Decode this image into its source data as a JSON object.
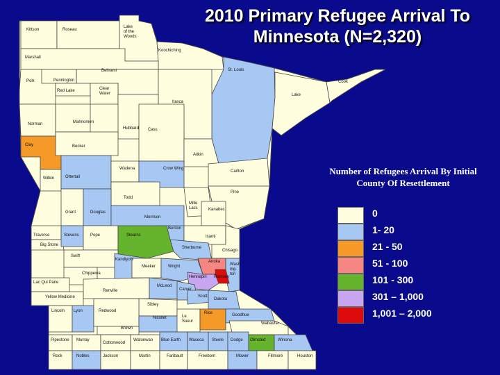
{
  "title": "2010 Primary Refugee Arrival To Minnesota (N=2,320)",
  "legend": {
    "title": "Number of Refugees Arrival By Initial County Of Resettlement",
    "items": [
      {
        "label": "0",
        "color": "#ffffe0"
      },
      {
        "label": "1- 20",
        "color": "#a8c8f4"
      },
      {
        "label": "21 - 50",
        "color": "#f59a28"
      },
      {
        "label": "51 - 100",
        "color": "#f68682"
      },
      {
        "label": "101 - 300",
        "color": "#66b32e"
      },
      {
        "label": "301 – 1,000",
        "color": "#c9a6f2"
      },
      {
        "label": "1,001 – 2,000",
        "color": "#dd0b0b"
      }
    ]
  },
  "counties": [
    {
      "name": "Kittson",
      "label": "Kittson",
      "cls": 0
    },
    {
      "name": "Roseau",
      "label": "Roseau",
      "cls": 0
    },
    {
      "name": "Lake of the Woods",
      "label": "Lake of the Woods",
      "cls": 0
    },
    {
      "name": "Koochiching",
      "label": "Koochiching",
      "cls": 0
    },
    {
      "name": "Marshall",
      "label": "Marshall",
      "cls": 0
    },
    {
      "name": "Beltrami",
      "label": "Beltrami",
      "cls": 0
    },
    {
      "name": "St. Louis",
      "label": "St. Louis",
      "cls": 1
    },
    {
      "name": "Polk",
      "label": "Polk",
      "cls": 0
    },
    {
      "name": "Pennington",
      "label": "Pennington",
      "cls": 0
    },
    {
      "name": "Red Lake",
      "label": "Red Lake",
      "cls": 0
    },
    {
      "name": "Clear Water",
      "label": "Clear Water",
      "cls": 0
    },
    {
      "name": "Lake",
      "label": "Lake",
      "cls": 0
    },
    {
      "name": "Cook",
      "label": "Cook",
      "cls": 0
    },
    {
      "name": "Itasca",
      "label": "Itasca",
      "cls": 0
    },
    {
      "name": "Norman",
      "label": "Norman",
      "cls": 0
    },
    {
      "name": "Mahnomen",
      "label": "Mahnomen",
      "cls": 0
    },
    {
      "name": "Hubbard",
      "label": "Hubbard",
      "cls": 0
    },
    {
      "name": "Cass",
      "label": "Cass",
      "cls": 0
    },
    {
      "name": "Clay",
      "label": "Clay",
      "cls": 2
    },
    {
      "name": "Becker",
      "label": "Becker",
      "cls": 0
    },
    {
      "name": "Aitkin",
      "label": "Aitkin",
      "cls": 0
    },
    {
      "name": "Carlton",
      "label": "Carlton",
      "cls": 0
    },
    {
      "name": "Wilkin",
      "label": "Wilkin",
      "cls": 0
    },
    {
      "name": "Ottertail",
      "label": "Ottertail",
      "cls": 1
    },
    {
      "name": "Wadena",
      "label": "Wadena",
      "cls": 0
    },
    {
      "name": "Crow Wing",
      "label": "Crow Wing",
      "cls": 1
    },
    {
      "name": "Pine",
      "label": "Pine",
      "cls": 0
    },
    {
      "name": "Todd",
      "label": "Todd",
      "cls": 0
    },
    {
      "name": "Mille Lacs",
      "label": "Mille Lacs",
      "cls": 0
    },
    {
      "name": "Kanabec",
      "label": "Kanabec",
      "cls": 0
    },
    {
      "name": "Grant",
      "label": "Grant",
      "cls": 0
    },
    {
      "name": "Douglas",
      "label": "Douglas",
      "cls": 1
    },
    {
      "name": "Morrison",
      "label": "Morrison",
      "cls": 1
    },
    {
      "name": "Benton",
      "label": "Benton",
      "cls": 1
    },
    {
      "name": "Traverse",
      "label": "Traverse",
      "cls": 0
    },
    {
      "name": "Big Stone",
      "label": "Big Stone",
      "cls": 0
    },
    {
      "name": "Stevens",
      "label": "Stevens",
      "cls": 1
    },
    {
      "name": "Pope",
      "label": "Pope",
      "cls": 0
    },
    {
      "name": "Stearns",
      "label": "Stearns",
      "cls": 4
    },
    {
      "name": "Isanti",
      "label": "Isanti",
      "cls": 0
    },
    {
      "name": "Sherburne",
      "label": "Sherburne",
      "cls": 1
    },
    {
      "name": "Chisago",
      "label": "Chisago",
      "cls": 0
    },
    {
      "name": "Swift",
      "label": "Swift",
      "cls": 0
    },
    {
      "name": "Kandiyohi",
      "label": "Kandiyohi",
      "cls": 1
    },
    {
      "name": "Meeker",
      "label": "Meeker",
      "cls": 0
    },
    {
      "name": "Wright",
      "label": "Wright",
      "cls": 1
    },
    {
      "name": "Anoka",
      "label": "Anoka",
      "cls": 3
    },
    {
      "name": "Washington",
      "label": "Wash-ing-ton",
      "cls": 1
    },
    {
      "name": "Hennepin",
      "label": "Hennepin",
      "cls": 5
    },
    {
      "name": "Ramsey",
      "label": "Ramsey",
      "cls": 6
    },
    {
      "name": "Chippewa",
      "label": "Chippewa",
      "cls": 0
    },
    {
      "name": "Lac Qui Parle",
      "label": "Lac Qui Parle",
      "cls": 0
    },
    {
      "name": "Renville",
      "label": "Renville",
      "cls": 0
    },
    {
      "name": "McLeod",
      "label": "McLeod",
      "cls": 1
    },
    {
      "name": "Carver",
      "label": "Carver",
      "cls": 1
    },
    {
      "name": "Scott",
      "label": "Scott",
      "cls": 1
    },
    {
      "name": "Dakota",
      "label": "Dakota",
      "cls": 1
    },
    {
      "name": "Yellow Medicine",
      "label": "Yellow Medicine",
      "cls": 0
    },
    {
      "name": "Sibley",
      "label": "Sibley",
      "cls": 0
    },
    {
      "name": "Lincoln",
      "label": "Lincoln",
      "cls": 0
    },
    {
      "name": "Lyon",
      "label": "Lyon",
      "cls": 1
    },
    {
      "name": "Redwood",
      "label": "Redwood",
      "cls": 0
    },
    {
      "name": "Nicollet",
      "label": "Nicollet",
      "cls": 1
    },
    {
      "name": "Le Sueur",
      "label": "Le Sueur",
      "cls": 0
    },
    {
      "name": "Rice",
      "label": "Rice",
      "cls": 2
    },
    {
      "name": "Goodhue",
      "label": "Goodhue",
      "cls": 1
    },
    {
      "name": "Wabasha",
      "label": "Wabasha",
      "cls": 0
    },
    {
      "name": "Brown",
      "label": "Brown",
      "cls": 0
    },
    {
      "name": "Pipestone",
      "label": "Pipestone",
      "cls": 0
    },
    {
      "name": "Murray",
      "label": "Murray",
      "cls": 0
    },
    {
      "name": "Cottonwood",
      "label": "Cottonwood",
      "cls": 0
    },
    {
      "name": "Watonwan",
      "label": "Watonwan",
      "cls": 0
    },
    {
      "name": "Blue Earth",
      "label": "Blue Earth",
      "cls": 1
    },
    {
      "name": "Waseca",
      "label": "Waseca",
      "cls": 1
    },
    {
      "name": "Steele",
      "label": "Steele",
      "cls": 1
    },
    {
      "name": "Dodge",
      "label": "Dodge",
      "cls": 1
    },
    {
      "name": "Olmsted",
      "label": "Olmsted",
      "cls": 4
    },
    {
      "name": "Winona",
      "label": "Winona",
      "cls": 1
    },
    {
      "name": "Rock",
      "label": "Rock",
      "cls": 0
    },
    {
      "name": "Nobles",
      "label": "Nobles",
      "cls": 1
    },
    {
      "name": "Jackson",
      "label": "Jackson",
      "cls": 0
    },
    {
      "name": "Martin",
      "label": "Martin",
      "cls": 0
    },
    {
      "name": "Faribault",
      "label": "Faribault",
      "cls": 0
    },
    {
      "name": "Freeborn",
      "label": "Freeborn",
      "cls": 0
    },
    {
      "name": "Mower",
      "label": "Mower",
      "cls": 1
    },
    {
      "name": "Fillmore",
      "label": "Fillmore",
      "cls": 0
    },
    {
      "name": "Houston",
      "label": "Houston",
      "cls": 0
    }
  ]
}
